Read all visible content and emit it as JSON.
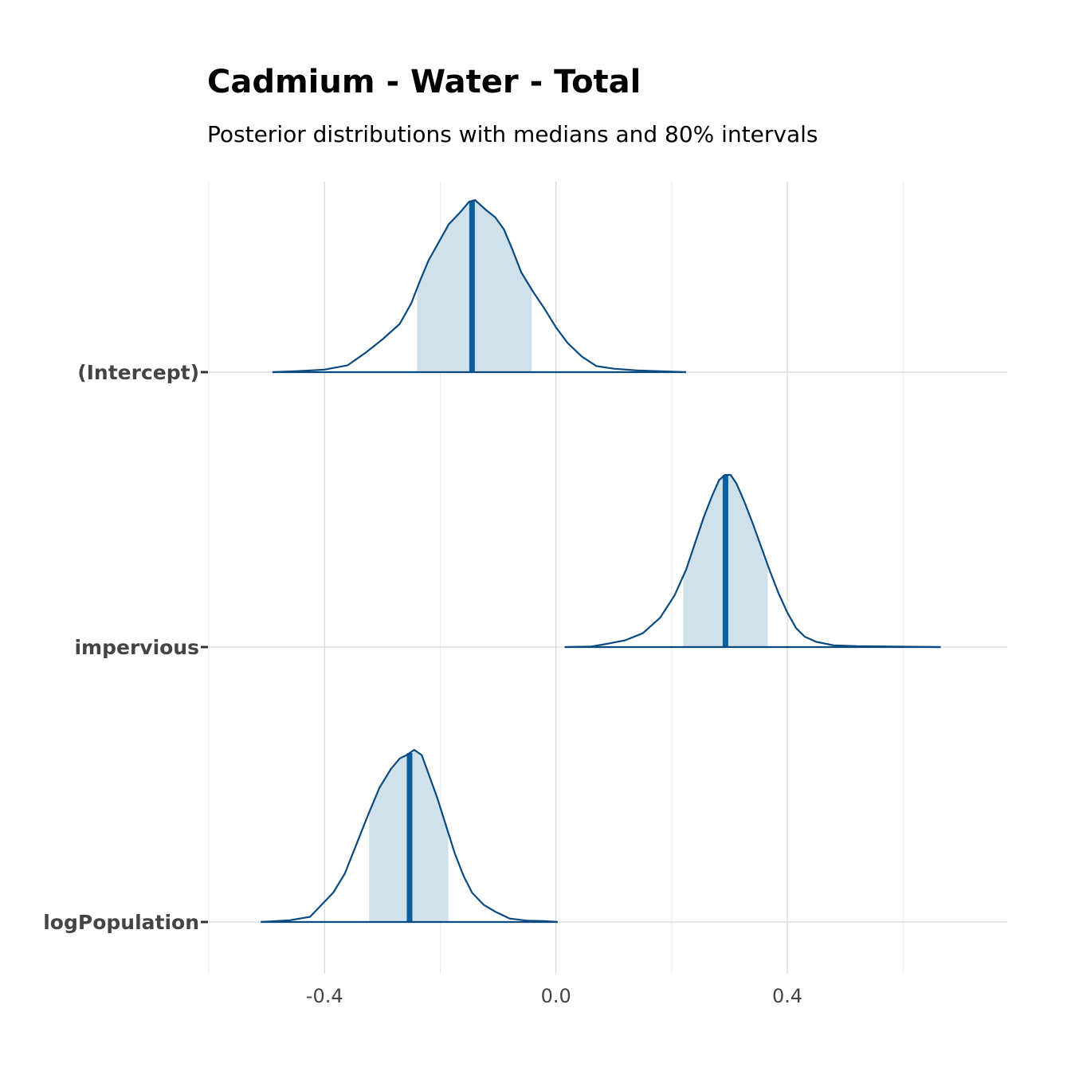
{
  "chart_data": {
    "type": "area",
    "title": "Cadmium - Water - Total",
    "subtitle": "Posterior distributions with medians and 80% intervals",
    "xlim": [
      -0.6,
      0.78
    ],
    "x_ticks": [
      -0.4,
      0.0,
      0.4
    ],
    "x_tick_labels": [
      "-0.4",
      "0.0",
      "0.4"
    ],
    "x_minor_grid": [
      -0.6,
      -0.2,
      0.2,
      0.6
    ],
    "grid": true,
    "colors": {
      "outline": "#0b4a80",
      "interval_fill": "#d1e1ec",
      "median_line": "#0a5fa1",
      "grid": "#d6d6d6"
    },
    "series": [
      {
        "name": "(Intercept)",
        "median": -0.145,
        "interval_80": [
          -0.24,
          -0.042
        ],
        "range": [
          -0.49,
          0.225
        ],
        "density": [
          [
            -0.49,
            0
          ],
          [
            -0.45,
            0.005
          ],
          [
            -0.4,
            0.015
          ],
          [
            -0.36,
            0.04
          ],
          [
            -0.33,
            0.11
          ],
          [
            -0.3,
            0.19
          ],
          [
            -0.27,
            0.28
          ],
          [
            -0.25,
            0.4
          ],
          [
            -0.235,
            0.53
          ],
          [
            -0.22,
            0.65
          ],
          [
            -0.2,
            0.77
          ],
          [
            -0.185,
            0.86
          ],
          [
            -0.165,
            0.93
          ],
          [
            -0.15,
            0.99
          ],
          [
            -0.14,
            1.0
          ],
          [
            -0.13,
            0.97
          ],
          [
            -0.12,
            0.94
          ],
          [
            -0.105,
            0.9
          ],
          [
            -0.09,
            0.83
          ],
          [
            -0.075,
            0.71
          ],
          [
            -0.06,
            0.58
          ],
          [
            -0.04,
            0.47
          ],
          [
            -0.02,
            0.37
          ],
          [
            0.0,
            0.26
          ],
          [
            0.02,
            0.17
          ],
          [
            0.045,
            0.09
          ],
          [
            0.07,
            0.035
          ],
          [
            0.1,
            0.02
          ],
          [
            0.14,
            0.01
          ],
          [
            0.18,
            0.005
          ],
          [
            0.225,
            0
          ]
        ]
      },
      {
        "name": "impervious",
        "median": 0.293,
        "interval_80": [
          0.22,
          0.366
        ],
        "range": [
          0.015,
          0.665
        ],
        "density": [
          [
            0.015,
            0
          ],
          [
            0.06,
            0.003
          ],
          [
            0.09,
            0.02
          ],
          [
            0.12,
            0.04
          ],
          [
            0.15,
            0.08
          ],
          [
            0.18,
            0.17
          ],
          [
            0.205,
            0.3
          ],
          [
            0.225,
            0.45
          ],
          [
            0.24,
            0.6
          ],
          [
            0.255,
            0.75
          ],
          [
            0.27,
            0.88
          ],
          [
            0.282,
            0.97
          ],
          [
            0.292,
            1.0
          ],
          [
            0.302,
            1.0
          ],
          [
            0.312,
            0.95
          ],
          [
            0.325,
            0.85
          ],
          [
            0.34,
            0.72
          ],
          [
            0.355,
            0.58
          ],
          [
            0.37,
            0.44
          ],
          [
            0.385,
            0.31
          ],
          [
            0.4,
            0.2
          ],
          [
            0.415,
            0.11
          ],
          [
            0.43,
            0.06
          ],
          [
            0.45,
            0.03
          ],
          [
            0.48,
            0.01
          ],
          [
            0.52,
            0.005
          ],
          [
            0.58,
            0.003
          ],
          [
            0.665,
            0
          ]
        ]
      },
      {
        "name": "logPopulation",
        "median": -0.253,
        "interval_80": [
          -0.323,
          -0.186
        ],
        "range": [
          -0.51,
          0.003
        ],
        "density": [
          [
            -0.51,
            0
          ],
          [
            -0.46,
            0.01
          ],
          [
            -0.425,
            0.03
          ],
          [
            -0.405,
            0.1
          ],
          [
            -0.385,
            0.17
          ],
          [
            -0.365,
            0.28
          ],
          [
            -0.345,
            0.45
          ],
          [
            -0.325,
            0.62
          ],
          [
            -0.305,
            0.78
          ],
          [
            -0.285,
            0.89
          ],
          [
            -0.27,
            0.95
          ],
          [
            -0.258,
            0.97
          ],
          [
            -0.245,
            1.0
          ],
          [
            -0.232,
            0.97
          ],
          [
            -0.22,
            0.86
          ],
          [
            -0.205,
            0.72
          ],
          [
            -0.19,
            0.56
          ],
          [
            -0.175,
            0.4
          ],
          [
            -0.16,
            0.27
          ],
          [
            -0.145,
            0.17
          ],
          [
            -0.125,
            0.1
          ],
          [
            -0.105,
            0.06
          ],
          [
            -0.08,
            0.02
          ],
          [
            -0.05,
            0.008
          ],
          [
            -0.02,
            0.005
          ],
          [
            0.003,
            0
          ]
        ]
      }
    ]
  }
}
